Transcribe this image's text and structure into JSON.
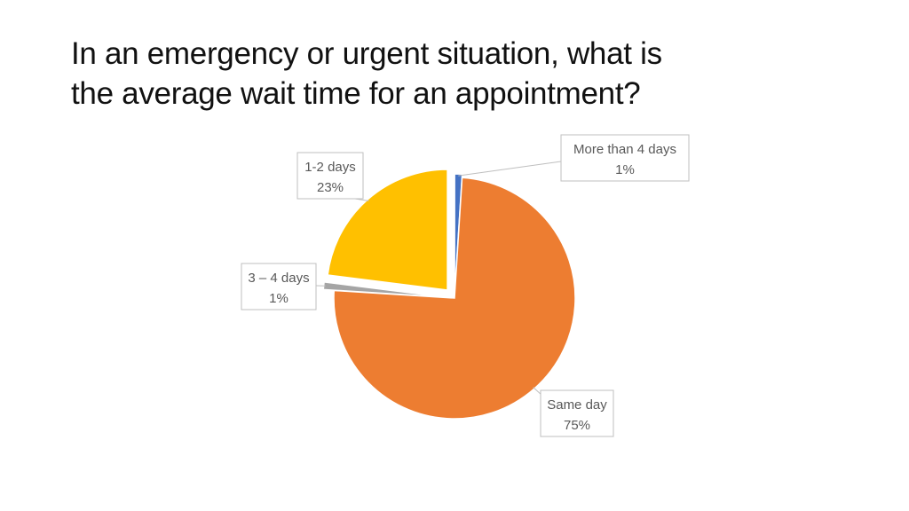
{
  "title_line1": "In an emergency or urgent situation, what is",
  "title_line2": "the average wait time for an appointment?",
  "chart_data": {
    "type": "pie",
    "title": "",
    "slices": [
      {
        "label": "More than 4 days",
        "value": 1,
        "value_label": "1%",
        "color": "#4472C4"
      },
      {
        "label": "Same day",
        "value": 75,
        "value_label": "75%",
        "color": "#ED7D31"
      },
      {
        "label": "3 – 4 days",
        "value": 1,
        "value_label": "1%",
        "color": "#A5A5A5"
      },
      {
        "label": "1-2 days",
        "value": 23,
        "value_label": "23%",
        "color": "#FFC000"
      }
    ],
    "start_angle": "12 o'clock",
    "direction": "clockwise",
    "legend": "none",
    "data_labels": "callouts with category name and percentage"
  }
}
